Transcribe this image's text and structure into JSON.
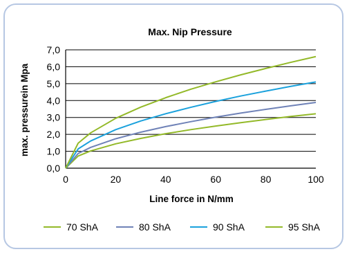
{
  "chart_data": {
    "type": "line",
    "title": "Max. Nip Pressure",
    "xlabel": "Line force in N/mm",
    "ylabel": "max. pressurein Mpa",
    "xlim": [
      0,
      100
    ],
    "ylim": [
      0,
      7
    ],
    "x_ticks": [
      "0",
      "20",
      "40",
      "60",
      "80",
      "100"
    ],
    "y_ticks": [
      "0,0",
      "1,0",
      "2,0",
      "3,0",
      "4,0",
      "5,0",
      "6,0",
      "7,0"
    ],
    "grid": "horizontal",
    "legend_position": "bottom",
    "x": [
      0,
      5,
      10,
      20,
      30,
      40,
      50,
      60,
      70,
      80,
      90,
      100
    ],
    "series": [
      {
        "name": "70 ShA",
        "color": "#93b928",
        "values": [
          0,
          0.72,
          1.02,
          1.44,
          1.76,
          2.04,
          2.28,
          2.49,
          2.69,
          2.88,
          3.06,
          3.22
        ]
      },
      {
        "name": "80 ShA",
        "color": "#6f82b7",
        "values": [
          0,
          0.87,
          1.23,
          1.74,
          2.13,
          2.46,
          2.75,
          3.02,
          3.26,
          3.48,
          3.69,
          3.89
        ]
      },
      {
        "name": "90 ShA",
        "color": "#1aa1dc",
        "values": [
          0,
          1.14,
          1.61,
          2.28,
          2.79,
          3.22,
          3.6,
          3.95,
          4.27,
          4.56,
          4.84,
          5.1
        ]
      },
      {
        "name": "95 ShA",
        "color": "#93b928",
        "values": [
          0,
          1.48,
          2.09,
          2.95,
          3.61,
          4.17,
          4.67,
          5.11,
          5.52,
          5.9,
          6.26,
          6.6
        ]
      }
    ]
  }
}
